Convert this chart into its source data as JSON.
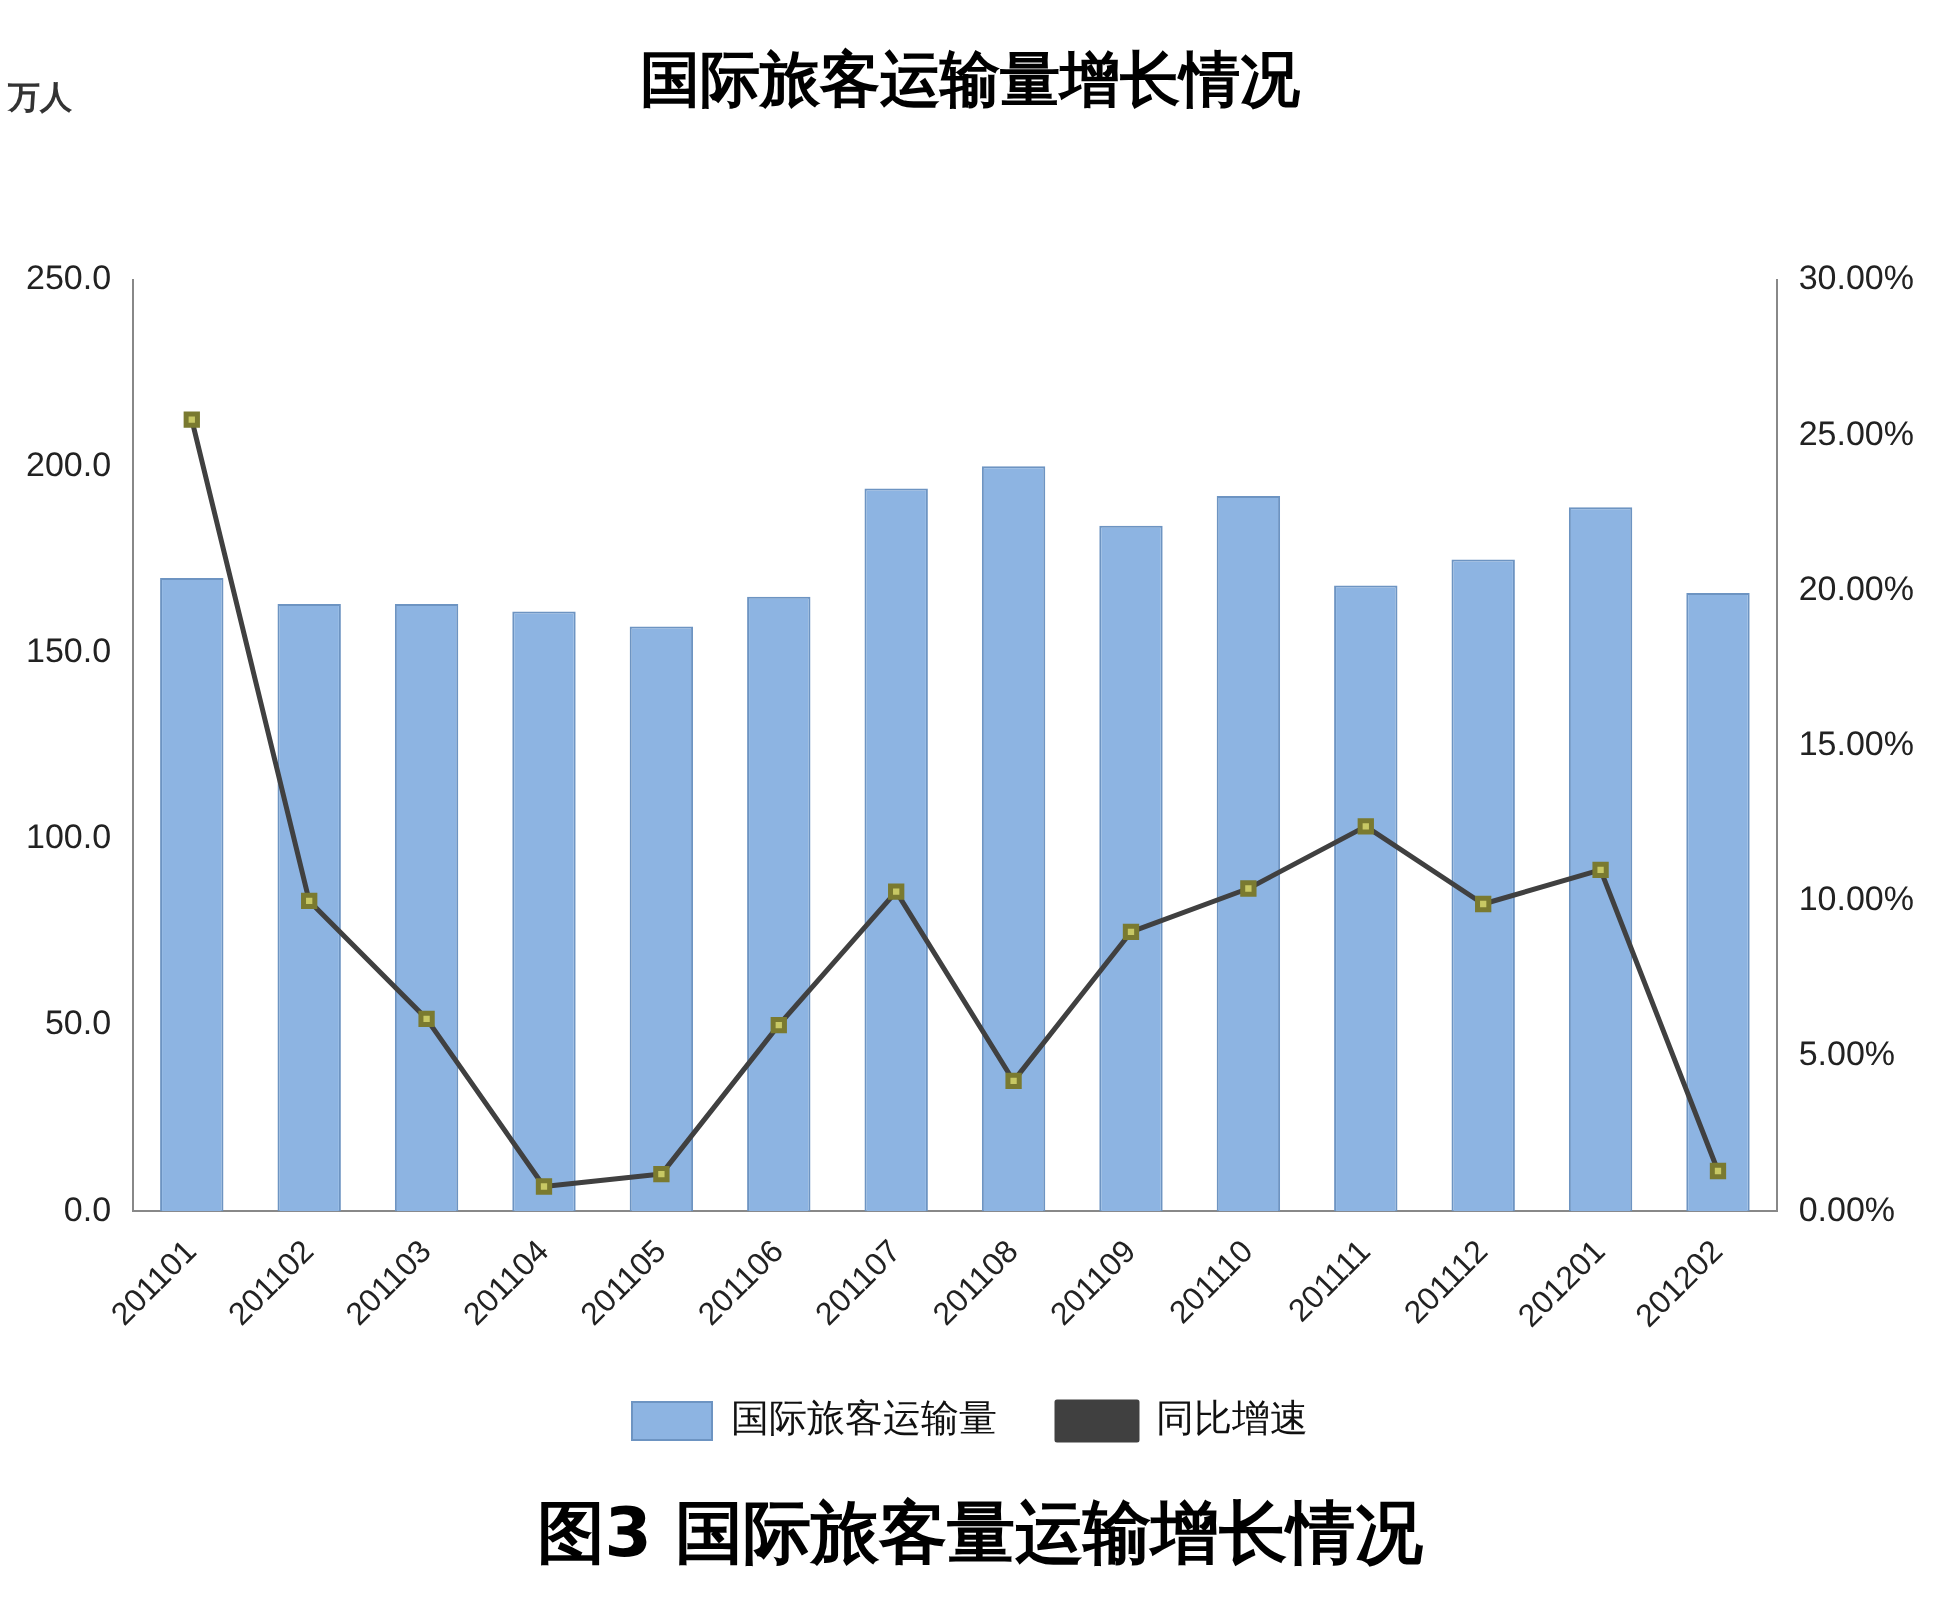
{
  "chart_data": {
    "type": "bar",
    "title": "国际旅客运输量增长情况",
    "ylabel": "万人",
    "categories": [
      "201101",
      "201102",
      "201103",
      "201104",
      "201105",
      "201106",
      "201107",
      "201108",
      "201109",
      "201110",
      "201111",
      "201112",
      "201201",
      "201202"
    ],
    "series": [
      {
        "name": "国际旅客运输量",
        "color": "#8db4e2",
        "values": [
          170,
          163,
          163,
          161,
          157,
          165,
          194,
          200,
          184,
          192,
          168,
          175,
          189,
          166
        ]
      },
      {
        "name": "同比增速",
        "type": "line",
        "axis": "y2",
        "color": "#404040",
        "marker": "square",
        "line_style": "solid",
        "values": [
          25.5,
          10.0,
          6.2,
          0.8,
          1.2,
          6.0,
          10.3,
          4.2,
          9.0,
          10.4,
          12.4,
          9.9,
          11.0,
          1.3
        ]
      }
    ],
    "ylim": [
      0,
      250
    ],
    "yticks": [
      {
        "value": 0,
        "label": "0.0"
      },
      {
        "value": 50,
        "label": "50.0"
      },
      {
        "value": 100,
        "label": "100.0"
      },
      {
        "value": 150,
        "label": "150.0"
      },
      {
        "value": 200,
        "label": "200.0"
      },
      {
        "value": 250,
        "label": "250.0"
      }
    ],
    "y2lim": [
      0,
      30
    ],
    "y2ticks": [
      {
        "value": 0,
        "label": "0.00%"
      },
      {
        "value": 5,
        "label": "5.00%"
      },
      {
        "value": 10,
        "label": "10.00%"
      },
      {
        "value": 15,
        "label": "15.00%"
      },
      {
        "value": 20,
        "label": "20.00%"
      },
      {
        "value": 25,
        "label": "25.00%"
      },
      {
        "value": 30,
        "label": "30.00%"
      }
    ],
    "grid": false,
    "legend": "bottom",
    "annotations": [
      "图3 国际旅客量运输增长情况"
    ]
  }
}
